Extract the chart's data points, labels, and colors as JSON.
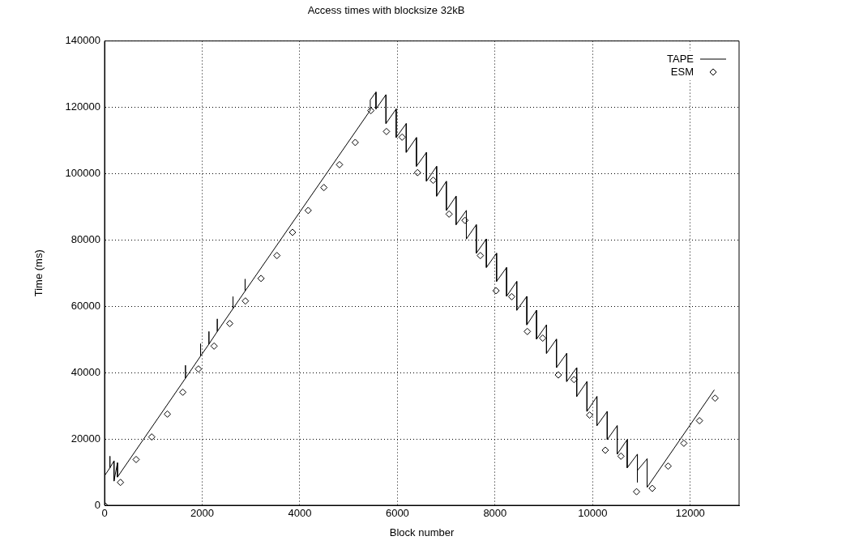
{
  "chart_data": {
    "type": "line",
    "title": "Access times with blocksize 32kB",
    "xlabel": "Block number",
    "ylabel": "Time (ms)",
    "xlim": [
      0,
      13000
    ],
    "xticks": [
      0,
      2000,
      4000,
      6000,
      8000,
      10000,
      12000
    ],
    "ylim": [
      0,
      140000
    ],
    "yticks": [
      0,
      20000,
      40000,
      60000,
      80000,
      100000,
      120000,
      140000
    ],
    "grid": true,
    "legend": "top right",
    "series": [
      {
        "name": "TAPE",
        "type": "line",
        "line_style": "solid",
        "color": "#000000",
        "x": [
          0,
          111,
          111,
          111,
          194,
          194,
          265,
          265,
          1658,
          1658,
          1658,
          1968,
          1968,
          1968,
          2139,
          2139,
          2139,
          2310,
          2310,
          2310,
          2632,
          2632,
          2632,
          2880,
          2880,
          2880,
          5444,
          5444,
          5561,
          5561,
          5766,
          5766,
          5975,
          5975,
          6181,
          6181,
          6390,
          6390,
          6595,
          6595,
          6804,
          6804,
          7003,
          7003,
          7202,
          7202,
          7413,
          7413,
          7617,
          7617,
          7823,
          7823,
          8032,
          8032,
          8237,
          8237,
          8446,
          8446,
          8652,
          8652,
          8851,
          8851,
          9055,
          9055,
          9259,
          9259,
          9469,
          9469,
          9674,
          9674,
          9884,
          9884,
          10088,
          10088,
          10299,
          10299,
          10503,
          10503,
          10708,
          10708,
          10917,
          10917,
          10917,
          11116,
          11116,
          12493
        ],
        "values": [
          8900,
          11300,
          14800,
          11300,
          13400,
          7300,
          12800,
          8500,
          38300,
          42200,
          38300,
          45000,
          48700,
          45000,
          48600,
          52400,
          48600,
          52400,
          56200,
          52400,
          59300,
          62900,
          59300,
          64600,
          68200,
          64600,
          119100,
          122200,
          124600,
          119500,
          123800,
          115100,
          119500,
          110900,
          115100,
          106400,
          110900,
          102200,
          106400,
          97700,
          102200,
          93200,
          97700,
          88900,
          93200,
          84600,
          88900,
          80300,
          84600,
          76000,
          80300,
          71700,
          76000,
          67500,
          71700,
          63000,
          67500,
          58800,
          63000,
          54400,
          58800,
          50100,
          54400,
          45800,
          50100,
          41500,
          45800,
          37300,
          41500,
          32800,
          37300,
          28300,
          32800,
          24000,
          28300,
          19800,
          24000,
          15400,
          19800,
          11300,
          15400,
          6900,
          10500,
          14000,
          5400,
          34800
        ]
      },
      {
        "name": "ESM",
        "type": "scatter",
        "marker": "diamond",
        "color": "#000000",
        "x": [
          0,
          326,
          647,
          967,
          1288,
          1603,
          1924,
          2244,
          2565,
          2886,
          3206,
          3532,
          3851,
          4172,
          4494,
          4814,
          5136,
          5456,
          5776,
          6096,
          6413,
          6733,
          7059,
          7384,
          7700,
          8022,
          8342,
          8662,
          8977,
          9297,
          9619,
          9938,
          10259,
          10580,
          10900,
          11221,
          11547,
          11869,
          12189,
          12509
        ],
        "values": [
          0,
          6900,
          13800,
          20600,
          27500,
          34100,
          41100,
          48000,
          54800,
          61600,
          68400,
          75300,
          82300,
          88900,
          95800,
          102700,
          109400,
          119000,
          112700,
          111000,
          100300,
          98000,
          87800,
          85900,
          75300,
          64700,
          62900,
          52400,
          50400,
          39300,
          37900,
          27200,
          16600,
          14800,
          4100,
          5100,
          11800,
          18700,
          25500,
          32300
        ]
      }
    ]
  }
}
